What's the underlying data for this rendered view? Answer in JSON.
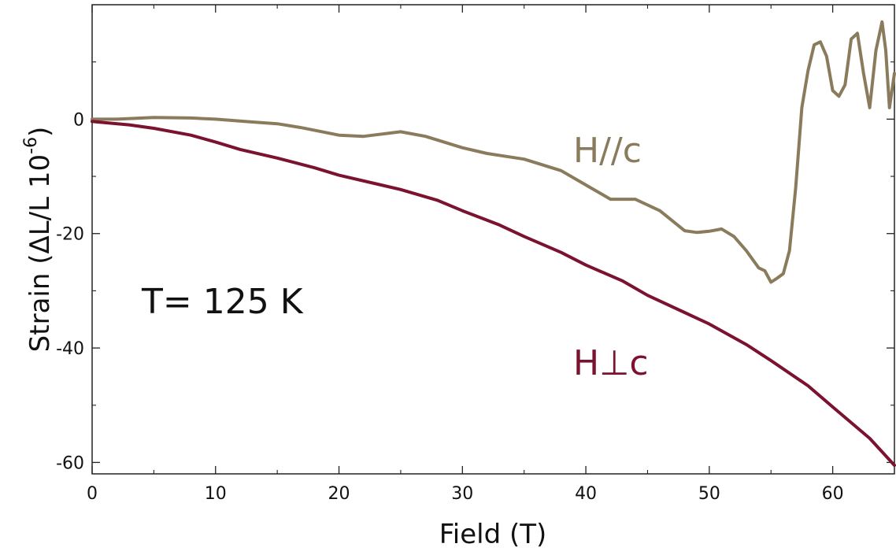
{
  "chart_data": {
    "type": "line",
    "xlabel": "Field (T)",
    "ylabel": "Strain (ΔL/L 10",
    "ylabel_superscript": "-6",
    "ylabel_close": ")",
    "xlim": [
      0,
      65
    ],
    "ylim": [
      -62,
      20
    ],
    "xticks": [
      0,
      10,
      20,
      30,
      40,
      50,
      60
    ],
    "xtick_labels": [
      "0",
      "10",
      "20",
      "30",
      "40",
      "50",
      "60"
    ],
    "yticks": [
      0,
      -20,
      -40,
      -60
    ],
    "ytick_labels": [
      "0",
      "-20",
      "-40",
      "-60"
    ],
    "grid": false,
    "annotations": {
      "temperature": "T= 125 K",
      "series_a_label": "H//c",
      "series_b_label": "H⊥c"
    },
    "series": [
      {
        "name": "H//c",
        "color": "#8a7b5c",
        "x": [
          0,
          2,
          5,
          8,
          10,
          13,
          15,
          17,
          20,
          22,
          25,
          27,
          30,
          32,
          35,
          38,
          40,
          42,
          44,
          46,
          48,
          49,
          50,
          51,
          52,
          53,
          54,
          54.5,
          55,
          55.5,
          56,
          56.5,
          57,
          57.5,
          58,
          58.5,
          59,
          59.5,
          60,
          60.5,
          61,
          61.5,
          62,
          62.5,
          63,
          63.5,
          64,
          64.3,
          64.6,
          65
        ],
        "y": [
          0,
          0,
          0.3,
          0.2,
          0,
          -0.5,
          -0.8,
          -1.5,
          -2.8,
          -3,
          -2.2,
          -3,
          -5,
          -6,
          -7,
          -9,
          -11.5,
          -14,
          -14,
          -16,
          -19.5,
          -19.8,
          -19.6,
          -19.2,
          -20.5,
          -23,
          -26,
          -26.5,
          -28.5,
          -27.8,
          -27,
          -23,
          -12,
          2,
          8.5,
          13,
          13.5,
          11,
          5,
          4,
          6,
          14,
          15,
          8,
          2,
          12,
          17,
          12,
          2,
          8
        ]
      },
      {
        "name": "H⊥c",
        "color": "#7a1230",
        "x": [
          0,
          3,
          5,
          8,
          10,
          12,
          15,
          18,
          20,
          23,
          25,
          28,
          30,
          33,
          35,
          38,
          40,
          43,
          45,
          48,
          50,
          53,
          55,
          58,
          60,
          63,
          65
        ],
        "y": [
          -0.4,
          -1,
          -1.6,
          -2.8,
          -4,
          -5.3,
          -6.8,
          -8.5,
          -9.8,
          -11.3,
          -12.3,
          -14.2,
          -16,
          -18.5,
          -20.5,
          -23.3,
          -25.5,
          -28.3,
          -30.8,
          -33.8,
          -35.8,
          -39.4,
          -42.2,
          -46.6,
          -50.3,
          -55.8,
          -60.5
        ]
      }
    ]
  }
}
